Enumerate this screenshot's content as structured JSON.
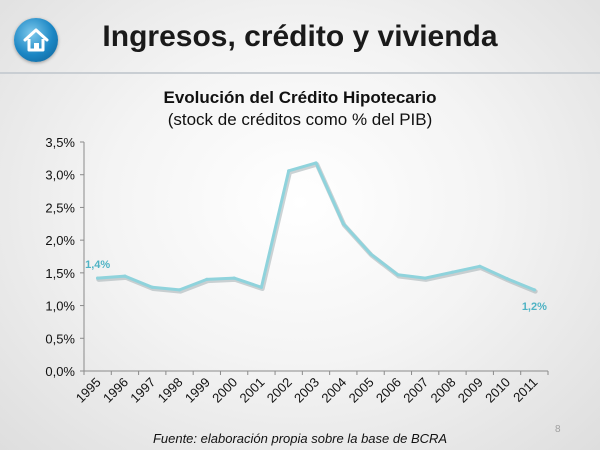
{
  "slide": {
    "title": "Ingresos, crédito y vivienda",
    "source": "Fuente: elaboración propia sobre la base de BCRA",
    "page_number": "8"
  },
  "logo": {
    "icon": "home-icon"
  },
  "chart_data": {
    "type": "line",
    "title": "Evolución del Crédito Hipotecario",
    "subtitle": "(stock de créditos como % del PIB)",
    "xlabel": "",
    "ylabel": "",
    "categories": [
      "1995",
      "1996",
      "1997",
      "1998",
      "1999",
      "2000",
      "2001",
      "2002",
      "2003",
      "2004",
      "2005",
      "2006",
      "2007",
      "2008",
      "2009",
      "2010",
      "2011"
    ],
    "series": [
      {
        "values": [
          1.42,
          1.45,
          1.28,
          1.24,
          1.4,
          1.42,
          1.28,
          3.06,
          3.18,
          2.25,
          1.79,
          1.47,
          1.42,
          1.51,
          1.6,
          1.41,
          1.24
        ],
        "color": "#8fd3dc"
      }
    ],
    "ylim": [
      0,
      3.5
    ],
    "yticks": [
      "0,0%",
      "0,5%",
      "1,0%",
      "1,5%",
      "2,0%",
      "2,5%",
      "3,0%",
      "3,5%"
    ],
    "annotations": [
      {
        "category": "1995",
        "text": "1,4%"
      },
      {
        "category": "2011",
        "text": "1,2%"
      }
    ],
    "label_color": "#4fb3c4",
    "grid": false
  }
}
